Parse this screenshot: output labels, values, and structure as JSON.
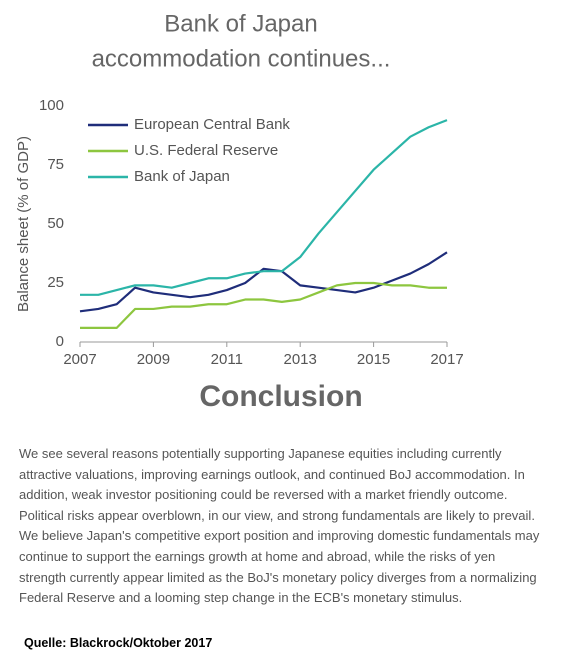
{
  "chart_data": {
    "type": "line",
    "title": [
      "Bank of Japan",
      "accommodation continues..."
    ],
    "y_label": "Balance sheet (% of GDP)",
    "x": [
      2007,
      2007.5,
      2008,
      2008.5,
      2009,
      2009.5,
      2010,
      2010.5,
      2011,
      2011.5,
      2012,
      2012.5,
      2013,
      2013.5,
      2014,
      2014.5,
      2015,
      2015.5,
      2016,
      2016.5,
      2017
    ],
    "series": [
      {
        "name": "European Central Bank",
        "color": "#1f2d7a",
        "values": [
          13,
          14,
          16,
          23,
          21,
          20,
          19,
          20,
          22,
          25,
          31,
          30,
          24,
          23,
          22,
          21,
          23,
          26,
          29,
          33,
          38
        ]
      },
      {
        "name": "U.S. Federal Reserve",
        "color": "#8dc63f",
        "values": [
          6,
          6,
          6,
          14,
          14,
          15,
          15,
          16,
          16,
          18,
          18,
          17,
          18,
          21,
          24,
          25,
          25,
          24,
          24,
          23,
          23
        ]
      },
      {
        "name": "Bank of Japan",
        "color": "#2bb5a8",
        "values": [
          20,
          20,
          22,
          24,
          24,
          23,
          25,
          27,
          27,
          29,
          30,
          30,
          36,
          46,
          55,
          64,
          73,
          80,
          87,
          91,
          94
        ]
      }
    ],
    "xlim": [
      2007,
      2017
    ],
    "xticks": [
      2007,
      2009,
      2011,
      2013,
      2015,
      2017
    ],
    "ylim": [
      0,
      100
    ],
    "yticks": [
      0,
      25,
      50,
      75,
      100
    ],
    "legend": "top-left",
    "grid": false
  },
  "heading": "Conclusion",
  "paragraph": "We see several reasons potentially supporting Japanese equities including currently attractive valuations, improving earnings outlook, and continued BoJ accommodation. In addition, weak investor positioning could be reversed with a market friendly outcome. Political risks appear overblown, in our view, and strong fundamentals are likely to prevail. We believe Japan's competitive export position and improving domestic fundamentals may continue to support the earnings growth at home and abroad, while the risks of yen strength currently appear limited as the BoJ's monetary policy diverges from a normalizing Federal Reserve and a looming step change in the ECB's monetary stimulus.",
  "source": "Quelle: Blackrock/Oktober 2017"
}
